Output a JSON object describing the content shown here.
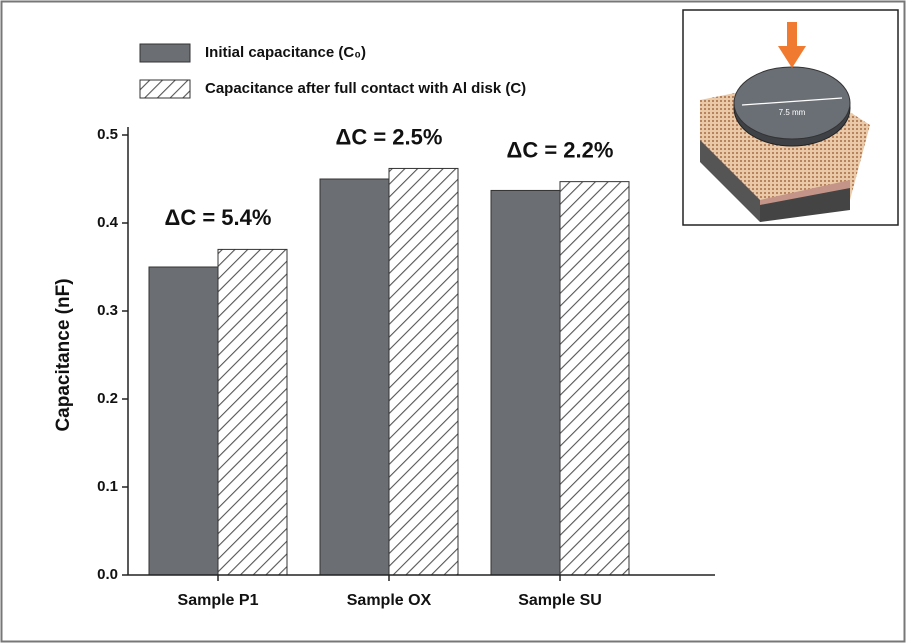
{
  "chart_data": {
    "type": "bar",
    "y_label": "Capacitance (nF)",
    "categories": [
      "Sample P1",
      "Sample OX",
      "Sample SU"
    ],
    "series": [
      {
        "name": "Initial capacitance (C₀)",
        "color": "#6b6e72",
        "fill": "solid",
        "values": [
          0.35,
          0.45,
          0.437
        ]
      },
      {
        "name": "Capacitance after full contact with Al disk (C)",
        "color": "#555555",
        "fill": "hatched",
        "values": [
          0.37,
          0.462,
          0.447
        ]
      }
    ],
    "annotations": [
      "ΔC = 5.4%",
      "ΔC = 2.5%",
      "ΔC = 2.2%"
    ],
    "ylim": [
      0,
      0.5
    ],
    "yticks": [
      {
        "value": 0,
        "label": "0.0"
      },
      0.1,
      0.2,
      0.3,
      0.4,
      0.5
    ],
    "grid": false,
    "legend": "top-left",
    "inset": {
      "label": "7.5 mm"
    }
  }
}
